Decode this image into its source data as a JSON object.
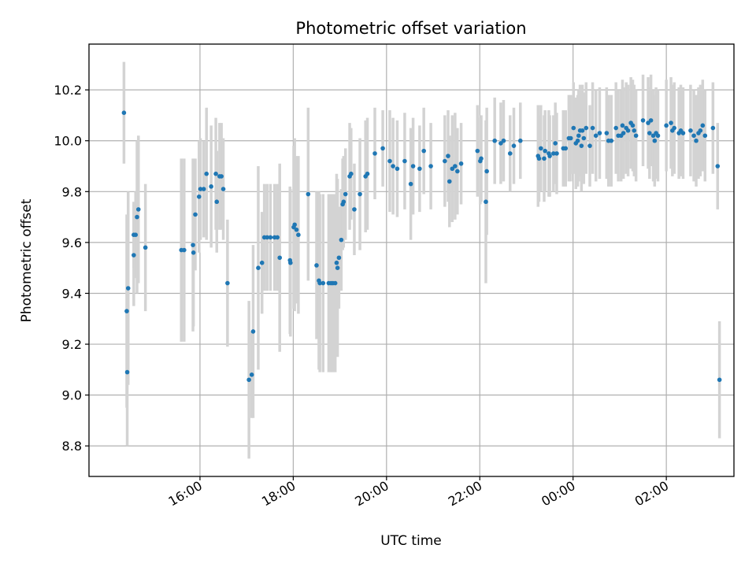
{
  "chart_data": {
    "type": "scatter",
    "title": "Photometric offset variation",
    "xlabel": "UTC time",
    "ylabel": "Photometric offset",
    "grid": true,
    "x_unit": "hours since 00:00 UTC of the first day",
    "xlim": [
      13.62,
      27.45
    ],
    "ylim": [
      8.68,
      10.38
    ],
    "x_ticks": [
      {
        "value": 16,
        "label": "16:00"
      },
      {
        "value": 18,
        "label": "18:00"
      },
      {
        "value": 20,
        "label": "20:00"
      },
      {
        "value": 22,
        "label": "22:00"
      },
      {
        "value": 24,
        "label": "00:00"
      },
      {
        "value": 26,
        "label": "02:00"
      }
    ],
    "y_ticks": [
      {
        "value": 8.8,
        "label": "8.8"
      },
      {
        "value": 9.0,
        "label": "9.0"
      },
      {
        "value": 9.2,
        "label": "9.2"
      },
      {
        "value": 9.4,
        "label": "9.4"
      },
      {
        "value": 9.6,
        "label": "9.6"
      },
      {
        "value": 9.8,
        "label": "9.8"
      },
      {
        "value": 10.0,
        "label": "10.0"
      },
      {
        "value": 10.2,
        "label": "10.2"
      }
    ],
    "colors": {
      "marker": "#1f77b4",
      "errorbar": "#d3d3d3"
    },
    "columns": [
      "x",
      "y",
      "err"
    ],
    "points": [
      [
        14.37,
        10.11,
        0.2
      ],
      [
        14.43,
        9.33,
        0.38
      ],
      [
        14.44,
        9.09,
        0.29
      ],
      [
        14.46,
        9.42,
        0.38
      ],
      [
        14.58,
        9.55,
        0.2
      ],
      [
        14.58,
        9.63,
        0.13
      ],
      [
        14.62,
        9.63,
        0.17
      ],
      [
        14.65,
        9.7,
        0.3
      ],
      [
        14.68,
        9.73,
        0.29
      ],
      [
        14.83,
        9.58,
        0.25
      ],
      [
        15.6,
        9.57,
        0.36
      ],
      [
        15.66,
        9.57,
        0.36
      ],
      [
        15.85,
        9.59,
        0.34
      ],
      [
        15.86,
        9.56,
        0.29
      ],
      [
        15.9,
        9.71,
        0.22
      ],
      [
        15.98,
        9.78,
        0.22
      ],
      [
        16.01,
        9.81,
        0.2
      ],
      [
        16.08,
        9.81,
        0.19
      ],
      [
        16.14,
        9.87,
        0.26
      ],
      [
        16.24,
        9.82,
        0.24
      ],
      [
        16.34,
        9.87,
        0.22
      ],
      [
        16.36,
        9.76,
        0.2
      ],
      [
        16.42,
        9.86,
        0.21
      ],
      [
        16.46,
        9.86,
        0.21
      ],
      [
        16.5,
        9.81,
        0.2
      ],
      [
        16.59,
        9.44,
        0.25
      ],
      [
        17.05,
        9.06,
        0.31
      ],
      [
        17.11,
        9.08,
        0.17
      ],
      [
        17.14,
        9.25,
        0.34
      ],
      [
        17.25,
        9.5,
        0.4
      ],
      [
        17.33,
        9.52,
        0.2
      ],
      [
        17.38,
        9.62,
        0.21
      ],
      [
        17.44,
        9.62,
        0.21
      ],
      [
        17.51,
        9.62,
        0.21
      ],
      [
        17.6,
        9.62,
        0.21
      ],
      [
        17.66,
        9.62,
        0.21
      ],
      [
        17.71,
        9.54,
        0.37
      ],
      [
        17.93,
        9.53,
        0.29
      ],
      [
        17.94,
        9.52,
        0.29
      ],
      [
        18.01,
        9.66,
        0.32
      ],
      [
        18.03,
        9.67,
        0.34
      ],
      [
        18.07,
        9.65,
        0.29
      ],
      [
        18.11,
        9.63,
        0.31
      ],
      [
        18.32,
        9.79,
        0.34
      ],
      [
        18.5,
        9.51,
        0.29
      ],
      [
        18.55,
        9.45,
        0.35
      ],
      [
        18.57,
        9.44,
        0.35
      ],
      [
        18.64,
        9.44,
        0.35
      ],
      [
        18.76,
        9.44,
        0.35
      ],
      [
        18.81,
        9.44,
        0.35
      ],
      [
        18.85,
        9.44,
        0.35
      ],
      [
        18.9,
        9.44,
        0.35
      ],
      [
        18.93,
        9.52,
        0.35
      ],
      [
        18.95,
        9.5,
        0.35
      ],
      [
        18.98,
        9.54,
        0.2
      ],
      [
        19.03,
        9.61,
        0.2
      ],
      [
        19.06,
        9.75,
        0.18
      ],
      [
        19.08,
        9.76,
        0.18
      ],
      [
        19.12,
        9.79,
        0.18
      ],
      [
        19.21,
        9.86,
        0.21
      ],
      [
        19.24,
        9.87,
        0.18
      ],
      [
        19.31,
        9.73,
        0.18
      ],
      [
        19.43,
        9.79,
        0.22
      ],
      [
        19.55,
        9.86,
        0.22
      ],
      [
        19.59,
        9.87,
        0.22
      ],
      [
        19.75,
        9.95,
        0.18
      ],
      [
        19.92,
        9.97,
        0.15
      ],
      [
        20.07,
        9.92,
        0.2
      ],
      [
        20.14,
        9.9,
        0.19
      ],
      [
        20.23,
        9.89,
        0.19
      ],
      [
        20.39,
        9.92,
        0.19
      ],
      [
        20.52,
        9.83,
        0.22
      ],
      [
        20.57,
        9.9,
        0.19
      ],
      [
        20.71,
        9.89,
        0.17
      ],
      [
        20.8,
        9.96,
        0.17
      ],
      [
        20.95,
        9.9,
        0.17
      ],
      [
        21.25,
        9.92,
        0.18
      ],
      [
        21.32,
        9.94,
        0.18
      ],
      [
        21.35,
        9.84,
        0.18
      ],
      [
        21.41,
        9.89,
        0.21
      ],
      [
        21.47,
        9.9,
        0.21
      ],
      [
        21.52,
        9.88,
        0.17
      ],
      [
        21.6,
        9.91,
        0.16
      ],
      [
        21.95,
        9.96,
        0.18
      ],
      [
        22.01,
        9.92,
        0.17
      ],
      [
        22.03,
        9.93,
        0.17
      ],
      [
        22.13,
        9.76,
        0.32
      ],
      [
        22.15,
        9.88,
        0.25
      ],
      [
        22.32,
        10.0,
        0.17
      ],
      [
        22.45,
        9.99,
        0.16
      ],
      [
        22.51,
        10.0,
        0.16
      ],
      [
        22.65,
        9.95,
        0.15
      ],
      [
        22.73,
        9.98,
        0.15
      ],
      [
        22.87,
        10.0,
        0.15
      ],
      [
        23.25,
        9.94,
        0.2
      ],
      [
        23.27,
        9.93,
        0.17
      ],
      [
        23.31,
        9.97,
        0.17
      ],
      [
        23.38,
        9.93,
        0.17
      ],
      [
        23.4,
        9.96,
        0.16
      ],
      [
        23.48,
        9.95,
        0.17
      ],
      [
        23.5,
        9.94,
        0.16
      ],
      [
        23.58,
        9.95,
        0.15
      ],
      [
        23.62,
        9.99,
        0.16
      ],
      [
        23.65,
        9.95,
        0.16
      ],
      [
        23.79,
        9.97,
        0.15
      ],
      [
        23.84,
        9.97,
        0.15
      ],
      [
        23.91,
        10.01,
        0.17
      ],
      [
        23.95,
        10.01,
        0.17
      ],
      [
        24.01,
        10.05,
        0.18
      ],
      [
        24.06,
        9.99,
        0.18
      ],
      [
        24.1,
        10.0,
        0.18
      ],
      [
        24.12,
        10.02,
        0.18
      ],
      [
        24.15,
        10.04,
        0.18
      ],
      [
        24.18,
        9.98,
        0.18
      ],
      [
        24.2,
        10.04,
        0.18
      ],
      [
        24.23,
        10.01,
        0.18
      ],
      [
        24.28,
        10.05,
        0.18
      ],
      [
        24.36,
        9.98,
        0.16
      ],
      [
        24.42,
        10.05,
        0.18
      ],
      [
        24.49,
        10.02,
        0.18
      ],
      [
        24.57,
        10.03,
        0.18
      ],
      [
        24.72,
        10.03,
        0.18
      ],
      [
        24.76,
        10.0,
        0.18
      ],
      [
        24.82,
        10.0,
        0.18
      ],
      [
        24.92,
        10.05,
        0.18
      ],
      [
        24.97,
        10.02,
        0.18
      ],
      [
        25.03,
        10.02,
        0.18
      ],
      [
        25.06,
        10.06,
        0.18
      ],
      [
        25.08,
        10.03,
        0.18
      ],
      [
        25.14,
        10.05,
        0.18
      ],
      [
        25.18,
        10.04,
        0.18
      ],
      [
        25.24,
        10.07,
        0.18
      ],
      [
        25.28,
        10.06,
        0.18
      ],
      [
        25.31,
        10.04,
        0.18
      ],
      [
        25.35,
        10.02,
        0.18
      ],
      [
        25.5,
        10.08,
        0.18
      ],
      [
        25.61,
        10.07,
        0.18
      ],
      [
        25.64,
        10.03,
        0.18
      ],
      [
        25.67,
        10.08,
        0.18
      ],
      [
        25.72,
        10.02,
        0.18
      ],
      [
        25.75,
        10.0,
        0.18
      ],
      [
        25.78,
        10.03,
        0.18
      ],
      [
        25.82,
        10.02,
        0.18
      ],
      [
        26.0,
        10.06,
        0.18
      ],
      [
        26.1,
        10.07,
        0.18
      ],
      [
        26.13,
        10.04,
        0.18
      ],
      [
        26.17,
        10.05,
        0.18
      ],
      [
        26.27,
        10.03,
        0.18
      ],
      [
        26.31,
        10.04,
        0.18
      ],
      [
        26.36,
        10.03,
        0.18
      ],
      [
        26.52,
        10.04,
        0.18
      ],
      [
        26.59,
        10.02,
        0.18
      ],
      [
        26.64,
        10.0,
        0.18
      ],
      [
        26.69,
        10.03,
        0.18
      ],
      [
        26.73,
        10.04,
        0.18
      ],
      [
        26.78,
        10.06,
        0.18
      ],
      [
        26.83,
        10.02,
        0.18
      ],
      [
        27.0,
        10.05,
        0.18
      ],
      [
        27.1,
        9.9,
        0.17
      ],
      [
        27.14,
        9.06,
        0.23
      ]
    ]
  }
}
